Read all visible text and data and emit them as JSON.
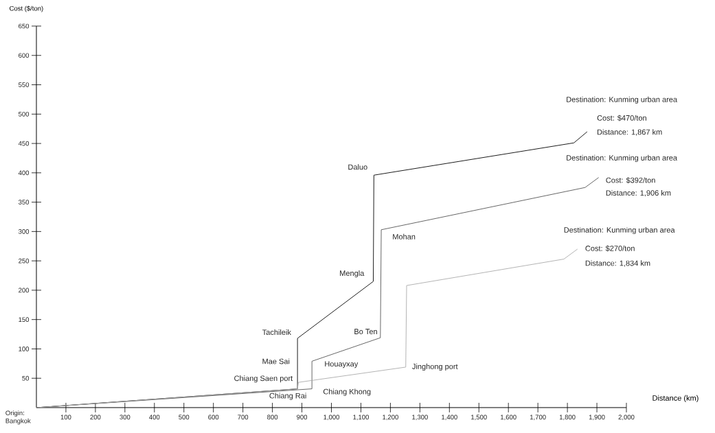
{
  "chart_data": {
    "type": "line",
    "xlabel": "Distance (km)",
    "ylabel": "Cost ($/ton)",
    "xlim": [
      0,
      2000
    ],
    "ylim": [
      0,
      650
    ],
    "xticks": [
      100,
      200,
      300,
      400,
      500,
      600,
      700,
      800,
      900,
      {
        "value": 1000,
        "label": "1,000"
      },
      {
        "value": 1100,
        "label": "1,100"
      },
      {
        "value": 1200,
        "label": "1,200"
      },
      {
        "value": 1300,
        "label": "1,300"
      },
      {
        "value": 1400,
        "label": "1,400"
      },
      {
        "value": 1500,
        "label": "1,500"
      },
      {
        "value": 1600,
        "label": "1,600"
      },
      {
        "value": 1700,
        "label": "1,700"
      },
      {
        "value": 1800,
        "label": "1,800"
      },
      {
        "value": 1900,
        "label": "1,900"
      },
      {
        "value": 2000,
        "label": "2,000"
      }
    ],
    "yticks": [
      50,
      100,
      150,
      200,
      250,
      300,
      350,
      400,
      450,
      500,
      550,
      600,
      650
    ],
    "series": [
      {
        "color": "#1a1a1a",
        "x": [
          0,
          885,
          885,
          1142,
          1144,
          1822,
          1867
        ],
        "values": [
          0,
          32,
          118,
          215,
          396,
          451,
          470
        ]
      },
      {
        "color": "#555555",
        "x": [
          0,
          934,
          934,
          1166,
          1169,
          1860,
          1906
        ],
        "values": [
          0,
          32,
          79,
          119,
          303,
          375,
          392
        ]
      },
      {
        "color": "#aaaaaa",
        "x": [
          0,
          885,
          888,
          1252,
          1255,
          1788,
          1834
        ],
        "values": [
          0,
          32,
          43,
          69,
          208,
          253,
          270
        ]
      }
    ],
    "annotations": [
      {
        "text": "Origin: Bangkok",
        "x": 0,
        "y": 0
      },
      {
        "text": "Chiang Rai",
        "x": 885,
        "y": 32
      },
      {
        "text": "Chiang Saen port",
        "x": 888,
        "y": 43
      },
      {
        "text": "Mae Sai",
        "x": 885,
        "y": 79
      },
      {
        "text": "Tachileik",
        "x": 885,
        "y": 118
      },
      {
        "text": "Mengla",
        "x": 1142,
        "y": 215
      },
      {
        "text": "Daluo",
        "x": 1144,
        "y": 396
      },
      {
        "text": "Chiang Khong",
        "x": 934,
        "y": 32
      },
      {
        "text": "Houayxay",
        "x": 934,
        "y": 79
      },
      {
        "text": "Bo Ten",
        "x": 1166,
        "y": 119
      },
      {
        "text": "Mohan",
        "x": 1169,
        "y": 303
      },
      {
        "text": "Jinghong port",
        "x": 1252,
        "y": 69
      },
      "Destination: Kunming urban area",
      {
        "text": "Cost: $470/ton",
        "x": 1867,
        "y": 470
      },
      {
        "text": "Distance: 1,867 km",
        "x": 1867,
        "y": 470
      },
      "Destination: Kunming urban area",
      {
        "text": "Cost: $392/ton",
        "x": 1906,
        "y": 392
      },
      {
        "text": "Distance: 1,906 km",
        "x": 1906,
        "y": 392
      },
      "Destination: Kunming urban area",
      {
        "text": "Cost: $270/ton",
        "x": 1834,
        "y": 270
      },
      {
        "text": "Distance: 1,834 km",
        "x": 1834,
        "y": 270
      }
    ]
  }
}
